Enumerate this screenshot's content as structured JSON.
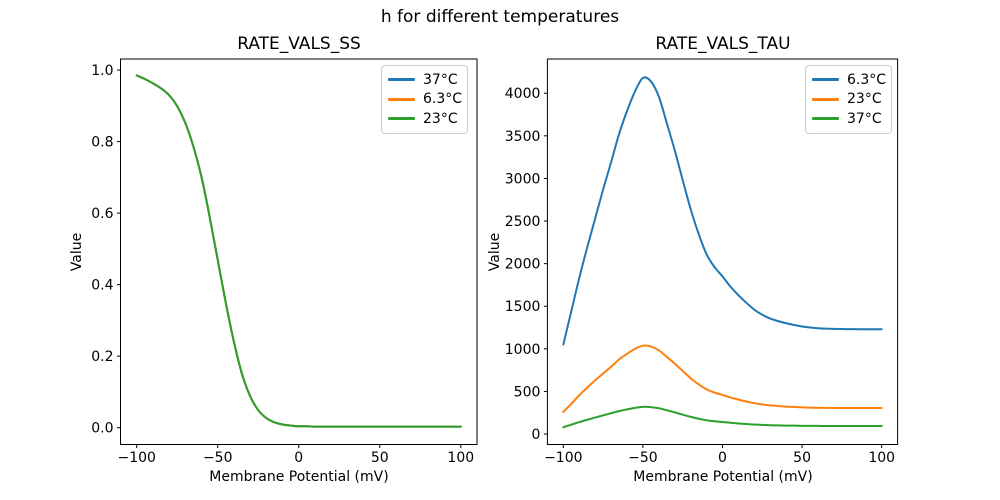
{
  "figure": {
    "suptitle": "h for different temperatures",
    "background_color": "#ffffff",
    "text_color": "#000000"
  },
  "chart_data": [
    {
      "type": "line",
      "title": "RATE_VALS_SS",
      "xlabel": "Membrane Potential (mV)",
      "ylabel": "Value",
      "xlim": [
        -110,
        110
      ],
      "ylim": [
        -0.047,
        1.031
      ],
      "grid": false,
      "legend_position": "upper right",
      "xticks": [
        -100,
        -50,
        0,
        50,
        100
      ],
      "xtick_labels": [
        "−100",
        "−50",
        "0",
        "50",
        "100"
      ],
      "yticks": [
        0.0,
        0.2,
        0.4,
        0.6,
        0.8,
        1.0
      ],
      "ytick_labels": [
        "0.0",
        "0.2",
        "0.4",
        "0.6",
        "0.8",
        "1.0"
      ],
      "x": [
        -100,
        -95,
        -90,
        -85,
        -80,
        -75,
        -70,
        -65,
        -60,
        -55,
        -50,
        -45,
        -40,
        -35,
        -30,
        -25,
        -20,
        -15,
        -10,
        -5,
        0,
        5,
        10,
        15,
        20,
        25,
        30,
        35,
        40,
        45,
        50,
        55,
        60,
        65,
        70,
        75,
        80,
        85,
        90,
        95,
        100
      ],
      "overlap_note": "all three temperature curves coincide exactly; green (last drawn) is visible",
      "series": [
        {
          "name": "37°C",
          "color": "#1f77b4",
          "values": [
            0.985,
            0.975,
            0.963,
            0.949,
            0.93,
            0.899,
            0.852,
            0.786,
            0.701,
            0.59,
            0.469,
            0.349,
            0.24,
            0.15,
            0.088,
            0.049,
            0.027,
            0.015,
            0.009,
            0.006,
            0.004,
            0.004,
            0.003,
            0.003,
            0.003,
            0.003,
            0.003,
            0.003,
            0.003,
            0.003,
            0.003,
            0.003,
            0.003,
            0.003,
            0.003,
            0.003,
            0.003,
            0.003,
            0.003,
            0.003,
            0.003
          ]
        },
        {
          "name": "6.3°C",
          "color": "#ff7f0e",
          "values": [
            0.985,
            0.975,
            0.963,
            0.949,
            0.93,
            0.899,
            0.852,
            0.786,
            0.701,
            0.59,
            0.469,
            0.349,
            0.24,
            0.15,
            0.088,
            0.049,
            0.027,
            0.015,
            0.009,
            0.006,
            0.004,
            0.004,
            0.003,
            0.003,
            0.003,
            0.003,
            0.003,
            0.003,
            0.003,
            0.003,
            0.003,
            0.003,
            0.003,
            0.003,
            0.003,
            0.003,
            0.003,
            0.003,
            0.003,
            0.003,
            0.003
          ]
        },
        {
          "name": "23°C",
          "color": "#2ca02c",
          "values": [
            0.985,
            0.975,
            0.963,
            0.949,
            0.93,
            0.899,
            0.852,
            0.786,
            0.701,
            0.59,
            0.469,
            0.349,
            0.24,
            0.15,
            0.088,
            0.049,
            0.027,
            0.015,
            0.009,
            0.006,
            0.004,
            0.004,
            0.003,
            0.003,
            0.003,
            0.003,
            0.003,
            0.003,
            0.003,
            0.003,
            0.003,
            0.003,
            0.003,
            0.003,
            0.003,
            0.003,
            0.003,
            0.003,
            0.003,
            0.003,
            0.003
          ]
        }
      ]
    },
    {
      "type": "line",
      "title": "RATE_VALS_TAU",
      "xlabel": "Membrane Potential (mV)",
      "ylabel": "Value",
      "xlim": [
        -110,
        110
      ],
      "ylim": [
        -123,
        4402
      ],
      "grid": false,
      "legend_position": "upper right",
      "xticks": [
        -100,
        -50,
        0,
        50,
        100
      ],
      "xtick_labels": [
        "−100",
        "−50",
        "0",
        "50",
        "100"
      ],
      "yticks": [
        0,
        500,
        1000,
        1500,
        2000,
        2500,
        3000,
        3500,
        4000
      ],
      "ytick_labels": [
        "0",
        "500",
        "1000",
        "1500",
        "2000",
        "2500",
        "3000",
        "3500",
        "4000"
      ],
      "x": [
        -100,
        -95,
        -90,
        -85,
        -80,
        -75,
        -70,
        -65,
        -60,
        -55,
        -50,
        -45,
        -40,
        -35,
        -30,
        -25,
        -20,
        -15,
        -10,
        -5,
        0,
        5,
        10,
        15,
        20,
        25,
        30,
        35,
        40,
        45,
        50,
        55,
        60,
        65,
        70,
        75,
        80,
        85,
        90,
        95,
        100
      ],
      "series": [
        {
          "name": "6.3°C",
          "color": "#1f77b4",
          "values": [
            1050,
            1440,
            1830,
            2190,
            2530,
            2870,
            3190,
            3520,
            3790,
            4020,
            4180,
            4140,
            3960,
            3650,
            3330,
            2980,
            2640,
            2350,
            2110,
            1960,
            1850,
            1730,
            1630,
            1540,
            1460,
            1400,
            1355,
            1325,
            1300,
            1280,
            1262,
            1250,
            1242,
            1237,
            1234,
            1232,
            1231,
            1230,
            1230,
            1230,
            1230
          ]
        },
        {
          "name": "23°C",
          "color": "#ff7f0e",
          "values": [
            260,
            355,
            455,
            545,
            630,
            710,
            790,
            875,
            940,
            1000,
            1037,
            1027,
            983,
            906,
            826,
            740,
            655,
            583,
            524,
            486,
            459,
            429,
            404,
            382,
            362,
            347,
            336,
            329,
            322,
            318,
            313,
            310,
            308,
            307,
            306,
            306,
            305,
            305,
            305,
            305,
            305
          ]
        },
        {
          "name": "37°C",
          "color": "#2ca02c",
          "values": [
            80,
            110,
            140,
            167,
            193,
            219,
            244,
            269,
            289,
            307,
            319,
            316,
            302,
            279,
            254,
            227,
            202,
            179,
            161,
            150,
            141,
            132,
            124,
            118,
            111,
            107,
            103,
            101,
            99,
            98,
            96,
            95,
            95,
            94,
            94,
            94,
            94,
            94,
            94,
            94,
            94
          ]
        }
      ]
    }
  ]
}
